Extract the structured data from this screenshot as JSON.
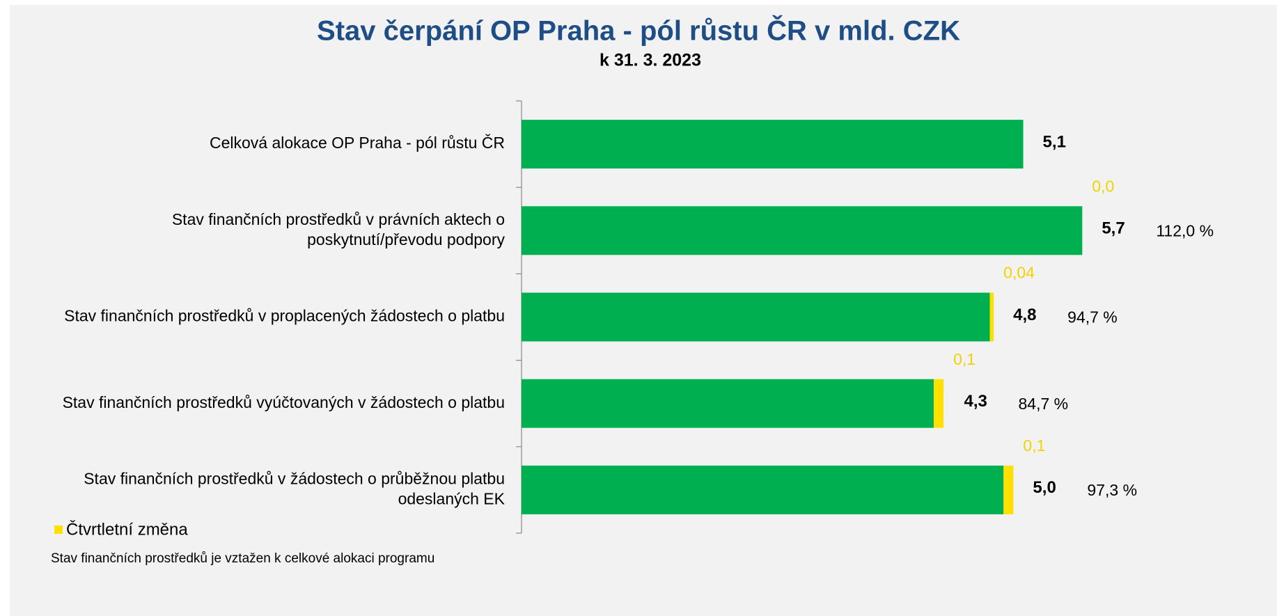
{
  "chart_data": {
    "type": "stacked-barh",
    "title": "Stav čerpání OP Praha - pól růstu ČR v mld. CZK",
    "subtitle": "k 31. 3. 2023",
    "categories": [
      "Celková alokace OP Praha - pól růstu ČR",
      "Stav finančních prostředků v právních aktech o\nposkytnutí/převodu podpory",
      "Stav finančních prostředků v proplacených žádostech o platbu",
      "Stav finančních prostředků vyúčtovaných v žádostech o platbu",
      "Stav finančních prostředků v žádostech o průběžnou platbu\nodeslaných EK"
    ],
    "series": [
      {
        "color": "#00b050",
        "values": [
          5.1,
          5.7,
          4.76,
          4.19,
          4.9
        ]
      },
      {
        "name": "Čtvrtletní změna",
        "color": "#ffe000",
        "label_color": "#f2d200",
        "values": [
          null,
          0.0,
          0.04,
          0.1,
          0.1
        ],
        "value_labels": [
          null,
          "0,0",
          "0,04",
          "0,1",
          "0,1"
        ]
      }
    ],
    "totals": {
      "values": [
        5.1,
        5.7,
        4.8,
        4.3,
        5.0
      ],
      "value_labels": [
        "5,1",
        "5,7",
        "4,8",
        "4,3",
        "5,0"
      ]
    },
    "shares": {
      "values": [
        null,
        112.0,
        94.7,
        84.7,
        97.3
      ],
      "value_labels": [
        null,
        "112,0 %",
        "94,7 %",
        "84,7 %",
        "97,3 %"
      ]
    },
    "xlim": [
      0,
      7
    ],
    "note": "Stav finančních prostředků je vztažen k celkové alokaci programu"
  }
}
